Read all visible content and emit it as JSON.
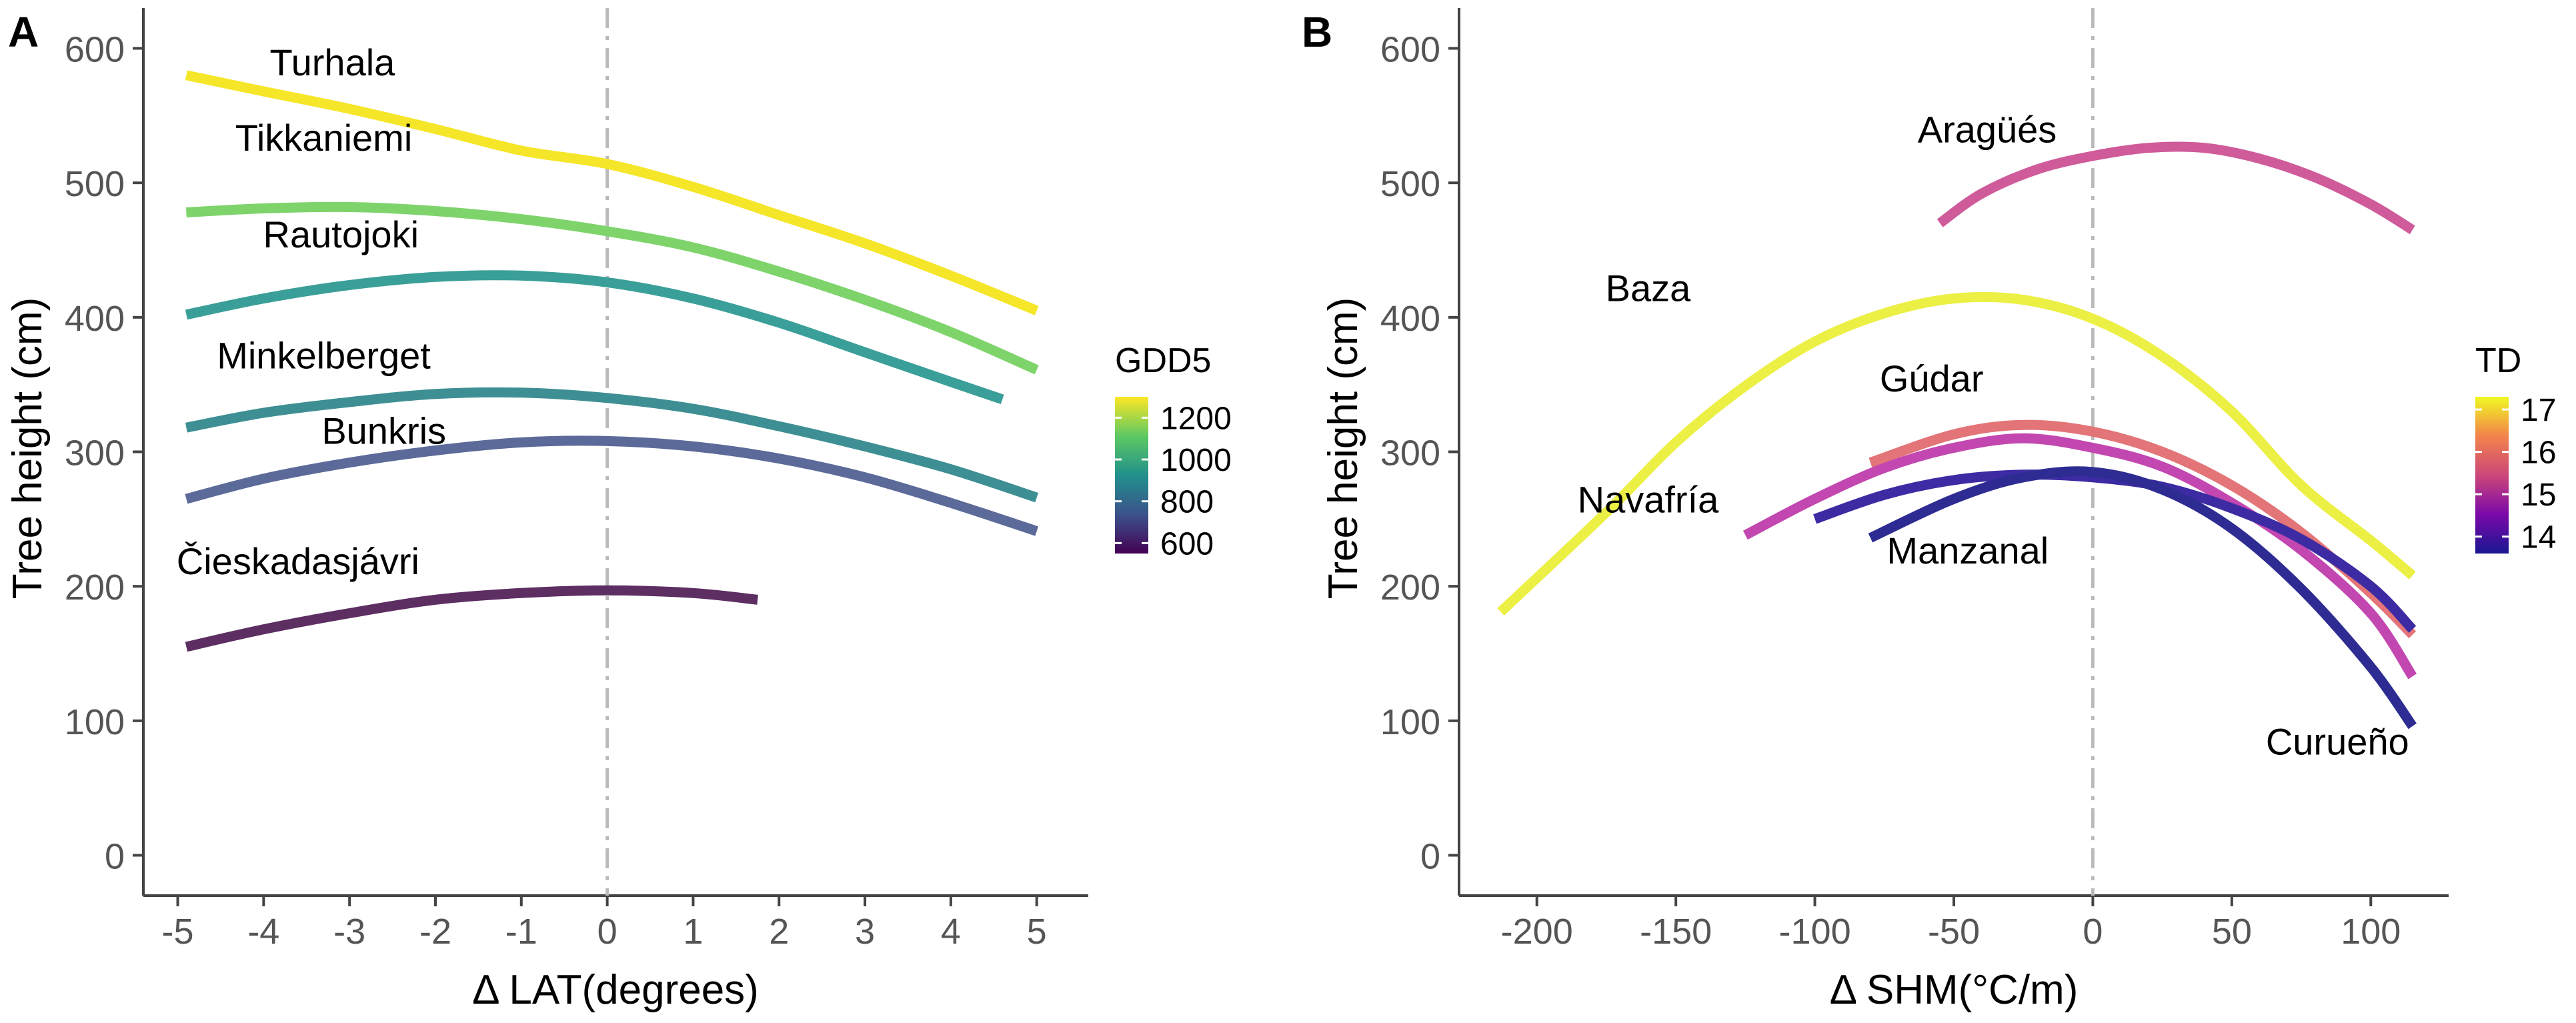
{
  "chart_data": [
    {
      "type": "line",
      "panel_label": "A",
      "xlabel": "Δ LAT(degrees)",
      "ylabel": "Tree height (cm)",
      "xlim": [
        -5.4,
        5.6
      ],
      "ylim": [
        -30,
        630
      ],
      "x_ticks": [
        -5,
        -4,
        -3,
        -2,
        -1,
        0,
        1,
        2,
        3,
        4,
        5
      ],
      "x_tick_labels": [
        "-5",
        "-4",
        "-3",
        "-2",
        "-1",
        "0",
        "1",
        "2",
        "3",
        "4",
        "5"
      ],
      "y_ticks": [
        0,
        100,
        200,
        300,
        400,
        500,
        600
      ],
      "y_tick_labels": [
        "0",
        "100",
        "200",
        "300",
        "400",
        "500",
        "600"
      ],
      "reference_line_x": 0,
      "legend": {
        "title": "GDD5",
        "placement": "right",
        "labels": [
          "1200",
          "1000",
          "800",
          "600"
        ],
        "values": [
          1200,
          1000,
          800,
          600
        ],
        "range": [
          550,
          1300
        ],
        "colors": [
          "#440154",
          "#3b528b",
          "#21918c",
          "#5ec962",
          "#fde725"
        ]
      },
      "series": [
        {
          "name": "Turhala",
          "color": "#f5e629",
          "label_x": -3.2,
          "label_y": 580,
          "x": [
            -4.9,
            -4,
            -3,
            -2,
            -1,
            0,
            1,
            2,
            3,
            4,
            5
          ],
          "y": [
            580,
            568,
            555,
            540,
            524,
            514,
            497,
            476,
            455,
            431,
            405
          ]
        },
        {
          "name": "Tikkaniemi",
          "color": "#7ed46b",
          "label_x": -3.3,
          "label_y": 524,
          "x": [
            -4.9,
            -4,
            -3,
            -2,
            -1,
            0,
            1,
            2,
            3,
            4,
            5
          ],
          "y": [
            478,
            481,
            482,
            479,
            473,
            464,
            452,
            434,
            413,
            389,
            361
          ]
        },
        {
          "name": "Rautojoki",
          "color": "#3a9f98",
          "label_x": -3.1,
          "label_y": 452,
          "x": [
            -4.9,
            -4,
            -3,
            -2,
            -1,
            0,
            1,
            2,
            3,
            4,
            4.6
          ],
          "y": [
            402,
            414,
            424,
            430,
            431,
            426,
            414,
            396,
            374,
            352,
            339
          ]
        },
        {
          "name": "Minkelberget",
          "color": "#3e8f93",
          "label_x": -3.3,
          "label_y": 362,
          "x": [
            -4.9,
            -4,
            -3,
            -2,
            -1,
            0,
            1,
            2,
            3,
            4,
            5
          ],
          "y": [
            318,
            329,
            337,
            343,
            344,
            340,
            332,
            319,
            304,
            287,
            266
          ]
        },
        {
          "name": "Bunkris",
          "color": "#5c6a99",
          "label_x": -2.6,
          "label_y": 306,
          "x": [
            -4.9,
            -4,
            -3,
            -2,
            -1,
            0,
            1,
            2,
            3,
            4,
            5
          ],
          "y": [
            265,
            280,
            292,
            301,
            307,
            308,
            304,
            295,
            281,
            262,
            241
          ]
        },
        {
          "name": "Čieskadasjávri",
          "color": "#5c2e62",
          "label_x": -3.6,
          "label_y": 209,
          "x": [
            -4.9,
            -4,
            -3,
            -2,
            -1,
            0,
            1,
            1.75
          ],
          "y": [
            155,
            168,
            180,
            190,
            195,
            197,
            195,
            190
          ]
        }
      ]
    },
    {
      "type": "line",
      "panel_label": "B",
      "xlabel": "Δ SHM(°C/m)",
      "ylabel": "Tree height (cm)",
      "xlim": [
        -228,
        128
      ],
      "ylim": [
        -30,
        630
      ],
      "x_ticks": [
        -200,
        -150,
        -100,
        -50,
        0,
        50,
        100
      ],
      "x_tick_labels": [
        "-200",
        "-150",
        "-100",
        "-50",
        "0",
        "50",
        "100"
      ],
      "y_ticks": [
        0,
        100,
        200,
        300,
        400,
        500,
        600
      ],
      "y_tick_labels": [
        "0",
        "100",
        "200",
        "300",
        "400",
        "500",
        "600"
      ],
      "reference_line_x": 0,
      "legend": {
        "title": "TD",
        "placement": "right",
        "labels": [
          "17",
          "16",
          "15",
          "14"
        ],
        "values": [
          17,
          16,
          15,
          14
        ],
        "range": [
          13.6,
          17.3
        ],
        "colors": [
          "#1a1791",
          "#7a09a8",
          "#cc4778",
          "#f2844b",
          "#f0f921"
        ]
      },
      "series": [
        {
          "name": "Aragüés",
          "color": "#cf5b9a",
          "label_x": -38,
          "label_y": 530,
          "x": [
            -55,
            -40,
            -20,
            0,
            20,
            40,
            60,
            80,
            100,
            115
          ],
          "y": [
            470,
            492,
            510,
            520,
            526,
            526,
            518,
            504,
            484,
            465
          ]
        },
        {
          "name": "Baza",
          "color": "#ecef44",
          "label_x": -160,
          "label_y": 412,
          "x": [
            -213,
            -175,
            -150,
            -125,
            -100,
            -75,
            -50,
            -25,
            0,
            25,
            50,
            75,
            100,
            115
          ],
          "y": [
            181,
            255,
            307,
            349,
            382,
            403,
            414,
            413,
            399,
            371,
            330,
            275,
            234,
            208
          ]
        },
        {
          "name": "Gúdar",
          "color": "#e37477",
          "label_x": -58,
          "label_y": 345,
          "x": [
            -80,
            -50,
            -25,
            0,
            25,
            50,
            75,
            100,
            115
          ],
          "y": [
            292,
            313,
            320,
            315,
            300,
            275,
            240,
            195,
            164
          ]
        },
        {
          "name": "Navafría",
          "color": "#c347b0",
          "label_x": -160,
          "label_y": 255,
          "x": [
            -125,
            -100,
            -75,
            -50,
            -25,
            0,
            25,
            50,
            75,
            100,
            115
          ],
          "y": [
            238,
            265,
            288,
            303,
            310,
            303,
            289,
            262,
            227,
            180,
            133
          ]
        },
        {
          "name": "Manzanal",
          "color": "#3c2ba3",
          "label_x": -45,
          "label_y": 217,
          "x": [
            -100,
            -75,
            -50,
            -25,
            0,
            25,
            50,
            75,
            100,
            115
          ],
          "y": [
            250,
            268,
            279,
            283,
            281,
            274,
            258,
            235,
            200,
            168
          ]
        },
        {
          "name": "Curueño",
          "color": "#2e2c92",
          "label_x": 88,
          "label_y": 75,
          "x": [
            -80,
            -50,
            -25,
            0,
            25,
            50,
            75,
            100,
            115
          ],
          "y": [
            236,
            265,
            281,
            285,
            272,
            243,
            198,
            140,
            96
          ]
        }
      ]
    }
  ]
}
